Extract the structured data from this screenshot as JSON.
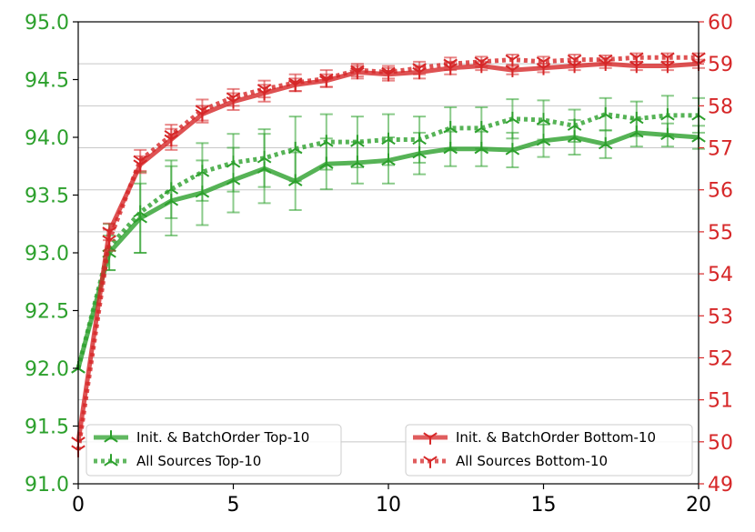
{
  "chart_data": {
    "type": "line",
    "x": [
      0,
      1,
      2,
      3,
      4,
      5,
      6,
      7,
      8,
      9,
      10,
      11,
      12,
      13,
      14,
      15,
      16,
      17,
      18,
      19,
      20
    ],
    "xlim": [
      0,
      20
    ],
    "xticks": [
      0,
      5,
      10,
      15,
      20
    ],
    "ylim_left": [
      91.0,
      95.0
    ],
    "yticks_left": [
      "91.0",
      "91.5",
      "92.0",
      "92.5",
      "93.0",
      "93.5",
      "94.0",
      "94.5",
      "95.0"
    ],
    "ylim_right": [
      49,
      60
    ],
    "yticks_right": [
      "49",
      "50",
      "51",
      "52",
      "53",
      "54",
      "55",
      "56",
      "57",
      "58",
      "59",
      "60"
    ],
    "grid": "horizontal, right axis",
    "left_color": "#2ca02c",
    "right_color": "#d62728",
    "legends": [
      {
        "placement": "lower-left",
        "entries": [
          "Init. & BatchOrder Top-10",
          "All Sources Top-10"
        ]
      },
      {
        "placement": "lower-right",
        "entries": [
          "Init. & BatchOrder Bottom-10",
          "All Sources Bottom-10"
        ]
      }
    ],
    "series": [
      {
        "name": "Init. & BatchOrder Top-10",
        "axis": "left",
        "color": "#2ca02c",
        "style": "solid",
        "values": [
          92.0,
          93.0,
          93.3,
          93.45,
          93.52,
          93.63,
          93.73,
          93.62,
          93.77,
          93.78,
          93.8,
          93.86,
          93.9,
          93.9,
          93.89,
          93.97,
          94.0,
          93.94,
          94.04,
          94.02,
          94.0
        ],
        "errors": [
          0,
          0.15,
          0.3,
          0.3,
          0.28,
          0.28,
          0.3,
          0.25,
          0.22,
          0.18,
          0.2,
          0.18,
          0.15,
          0.15,
          0.15,
          0.14,
          0.15,
          0.12,
          0.12,
          0.1,
          0.1
        ]
      },
      {
        "name": "All Sources Top-10",
        "axis": "left",
        "color": "#2ca02c",
        "style": "dotted",
        "values": [
          92.0,
          93.05,
          93.35,
          93.55,
          93.7,
          93.78,
          93.82,
          93.9,
          93.96,
          93.96,
          93.98,
          93.98,
          94.08,
          94.08,
          94.16,
          94.15,
          94.1,
          94.2,
          94.16,
          94.19,
          94.19
        ],
        "errors": [
          0,
          0.2,
          0.35,
          0.25,
          0.25,
          0.25,
          0.25,
          0.28,
          0.24,
          0.22,
          0.22,
          0.2,
          0.18,
          0.18,
          0.17,
          0.17,
          0.14,
          0.14,
          0.15,
          0.17,
          0.15
        ]
      },
      {
        "name": "Init. & BatchOrder Bottom-10",
        "axis": "right",
        "color": "#d62728",
        "style": "solid",
        "values": [
          50.0,
          55.0,
          56.6,
          57.2,
          57.8,
          58.1,
          58.3,
          58.5,
          58.6,
          58.8,
          58.75,
          58.8,
          58.9,
          58.95,
          58.85,
          58.9,
          58.95,
          59.0,
          58.95,
          58.95,
          59.0
        ],
        "errors": [
          0,
          0.2,
          0.2,
          0.25,
          0.2,
          0.2,
          0.2,
          0.15,
          0.15,
          0.15,
          0.15,
          0.15,
          0.15,
          0.1,
          0.1,
          0.1,
          0.1,
          0.1,
          0.1,
          0.1,
          0.1
        ]
      },
      {
        "name": "All Sources Bottom-10",
        "axis": "right",
        "color": "#d62728",
        "style": "dotted",
        "values": [
          49.8,
          54.8,
          56.7,
          57.3,
          57.9,
          58.2,
          58.4,
          58.55,
          58.65,
          58.85,
          58.8,
          58.9,
          59.0,
          59.05,
          59.1,
          59.05,
          59.1,
          59.1,
          59.15,
          59.15,
          59.15
        ],
        "errors": [
          0,
          0.25,
          0.25,
          0.25,
          0.25,
          0.2,
          0.2,
          0.2,
          0.2,
          0.15,
          0.15,
          0.15,
          0.15,
          0.12,
          0.12,
          0.12,
          0.12,
          0.1,
          0.1,
          0.1,
          0.1
        ]
      }
    ]
  }
}
